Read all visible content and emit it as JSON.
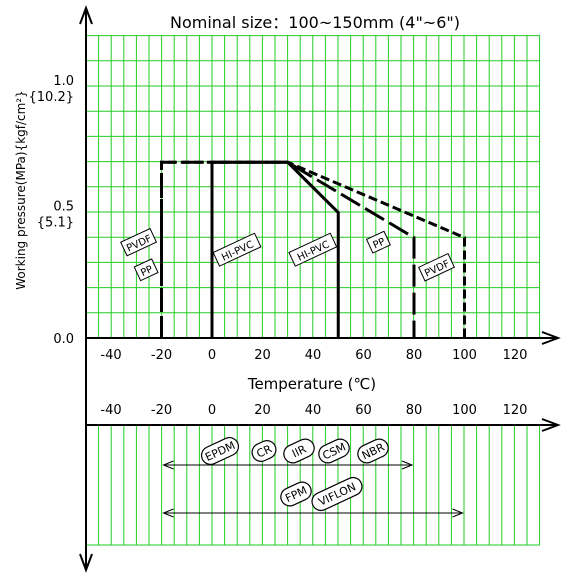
{
  "chart_data": {
    "type": "line",
    "title": "Nominal size：100~150mm (4\"~6\")",
    "ylabel": "Working pressure(MPa){kgf/cm²}",
    "xlabel": "Temperature (℃)",
    "x_ticks": [
      -40,
      -20,
      0,
      20,
      40,
      60,
      80,
      100,
      120
    ],
    "y_ticks": [
      {
        "value": 1.0,
        "label": "1.0",
        "sub": "{10.2}"
      },
      {
        "value": 0.5,
        "label": "0.5",
        "sub": "{5.1}"
      },
      {
        "value": 0.0,
        "label": "0.0",
        "sub": ""
      }
    ],
    "xlim": [
      -50,
      130
    ],
    "ylim": [
      0,
      1.2
    ],
    "grid": true,
    "grid_color": "#22cc22",
    "series": [
      {
        "name": "PVDF",
        "style": "dash-dot",
        "points": [
          [
            -20,
            0
          ],
          [
            -20,
            0.7
          ],
          [
            30,
            0.7
          ],
          [
            100,
            0.4
          ],
          [
            100,
            0
          ]
        ]
      },
      {
        "name": "PP",
        "style": "long-dash",
        "points": [
          [
            -20,
            0
          ],
          [
            -20,
            0.7
          ],
          [
            30,
            0.7
          ],
          [
            80,
            0.4
          ],
          [
            80,
            0
          ]
        ]
      },
      {
        "name": "HI-PVC",
        "style": "solid",
        "points": [
          [
            0,
            0
          ],
          [
            0,
            0.7
          ],
          [
            30,
            0.7
          ],
          [
            50,
            0.5
          ],
          [
            50,
            0
          ]
        ]
      }
    ],
    "tags": [
      {
        "text": "PVDF",
        "x": -29,
        "y": 0.38,
        "angle": -25
      },
      {
        "text": "PP",
        "x": -26,
        "y": 0.27,
        "angle": -25
      },
      {
        "text": "HI-PVC",
        "x": 10,
        "y": 0.35,
        "angle": -25
      },
      {
        "text": "HI-PVC",
        "x": 40,
        "y": 0.35,
        "angle": -25
      },
      {
        "text": "PP",
        "x": 66,
        "y": 0.38,
        "angle": -25
      },
      {
        "text": "PVDF",
        "x": 89,
        "y": 0.28,
        "angle": -25
      }
    ],
    "lower_panel": {
      "rubbers_group1": [
        "EPDM",
        "CR",
        "IIR",
        "CSM",
        "NBR"
      ],
      "group1_range": [
        -20,
        80
      ],
      "rubbers_group2": [
        "FPM",
        "VIFLON"
      ],
      "group2_range": [
        -20,
        100
      ]
    }
  }
}
